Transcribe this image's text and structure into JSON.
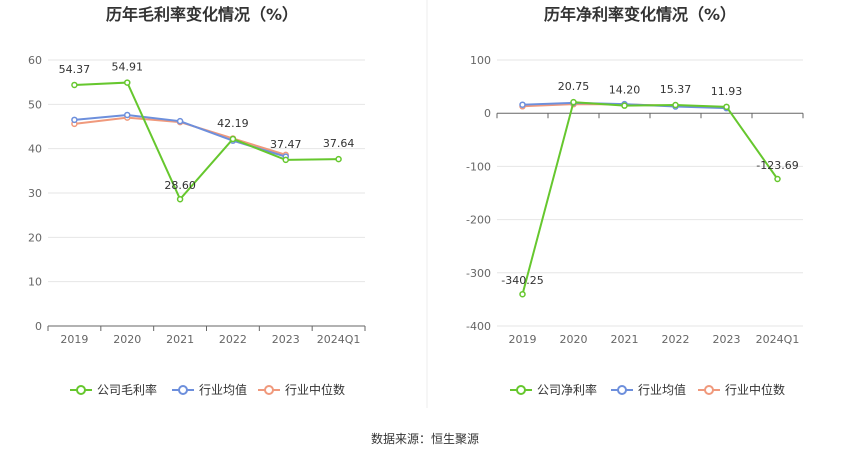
{
  "source": "数据来源：恒生聚源",
  "colors": {
    "company": "#66c72e",
    "avg": "#6d8fdc",
    "median": "#f0997c"
  },
  "legend_icon": "circle-line-icon",
  "chart_data": [
    {
      "type": "line",
      "title": "历年毛利率变化情况（%）",
      "categories": [
        "2019",
        "2020",
        "2021",
        "2022",
        "2023",
        "2024Q1"
      ],
      "ylim": [
        0,
        60
      ],
      "yticks": [
        0,
        10,
        20,
        30,
        40,
        50,
        60
      ],
      "ytick_labels": [
        "0",
        "10",
        "20",
        "30",
        "40",
        "50",
        "60"
      ],
      "grid": true,
      "legend_position": "bottom",
      "series": [
        {
          "name": "公司毛利率",
          "key": "company",
          "values": [
            54.37,
            54.91,
            28.6,
            42.19,
            37.47,
            37.64
          ],
          "labels": [
            "54.37",
            "54.91",
            "28.60",
            "42.19",
            "37.47",
            "37.64"
          ]
        },
        {
          "name": "行业均值",
          "key": "avg",
          "values": [
            46.5,
            47.6,
            46.2,
            41.8,
            38.2,
            null
          ]
        },
        {
          "name": "行业中位数",
          "key": "median",
          "values": [
            45.6,
            47.0,
            46.0,
            42.3,
            38.6,
            null
          ]
        }
      ]
    },
    {
      "type": "line",
      "title": "历年净利率变化情况（%）",
      "categories": [
        "2019",
        "2020",
        "2021",
        "2022",
        "2023",
        "2024Q1"
      ],
      "ylim": [
        -400,
        100
      ],
      "yticks": [
        -400,
        -300,
        -200,
        -100,
        0,
        100
      ],
      "ytick_labels": [
        "-400",
        "-300",
        "-200",
        "-100",
        "0",
        "100"
      ],
      "grid": true,
      "legend_position": "bottom",
      "series": [
        {
          "name": "公司净利率",
          "key": "company",
          "values": [
            -340.25,
            20.75,
            14.2,
            15.37,
            11.93,
            -123.69
          ],
          "labels": [
            "-340.25",
            "20.75",
            "14.20",
            "15.37",
            "11.93",
            "-123.69"
          ]
        },
        {
          "name": "行业均值",
          "key": "avg",
          "values": [
            16.0,
            19.5,
            17.0,
            12.5,
            9.5,
            null
          ]
        },
        {
          "name": "行业中位数",
          "key": "median",
          "values": [
            13.0,
            17.0,
            16.5,
            14.0,
            11.5,
            null
          ]
        }
      ]
    }
  ]
}
